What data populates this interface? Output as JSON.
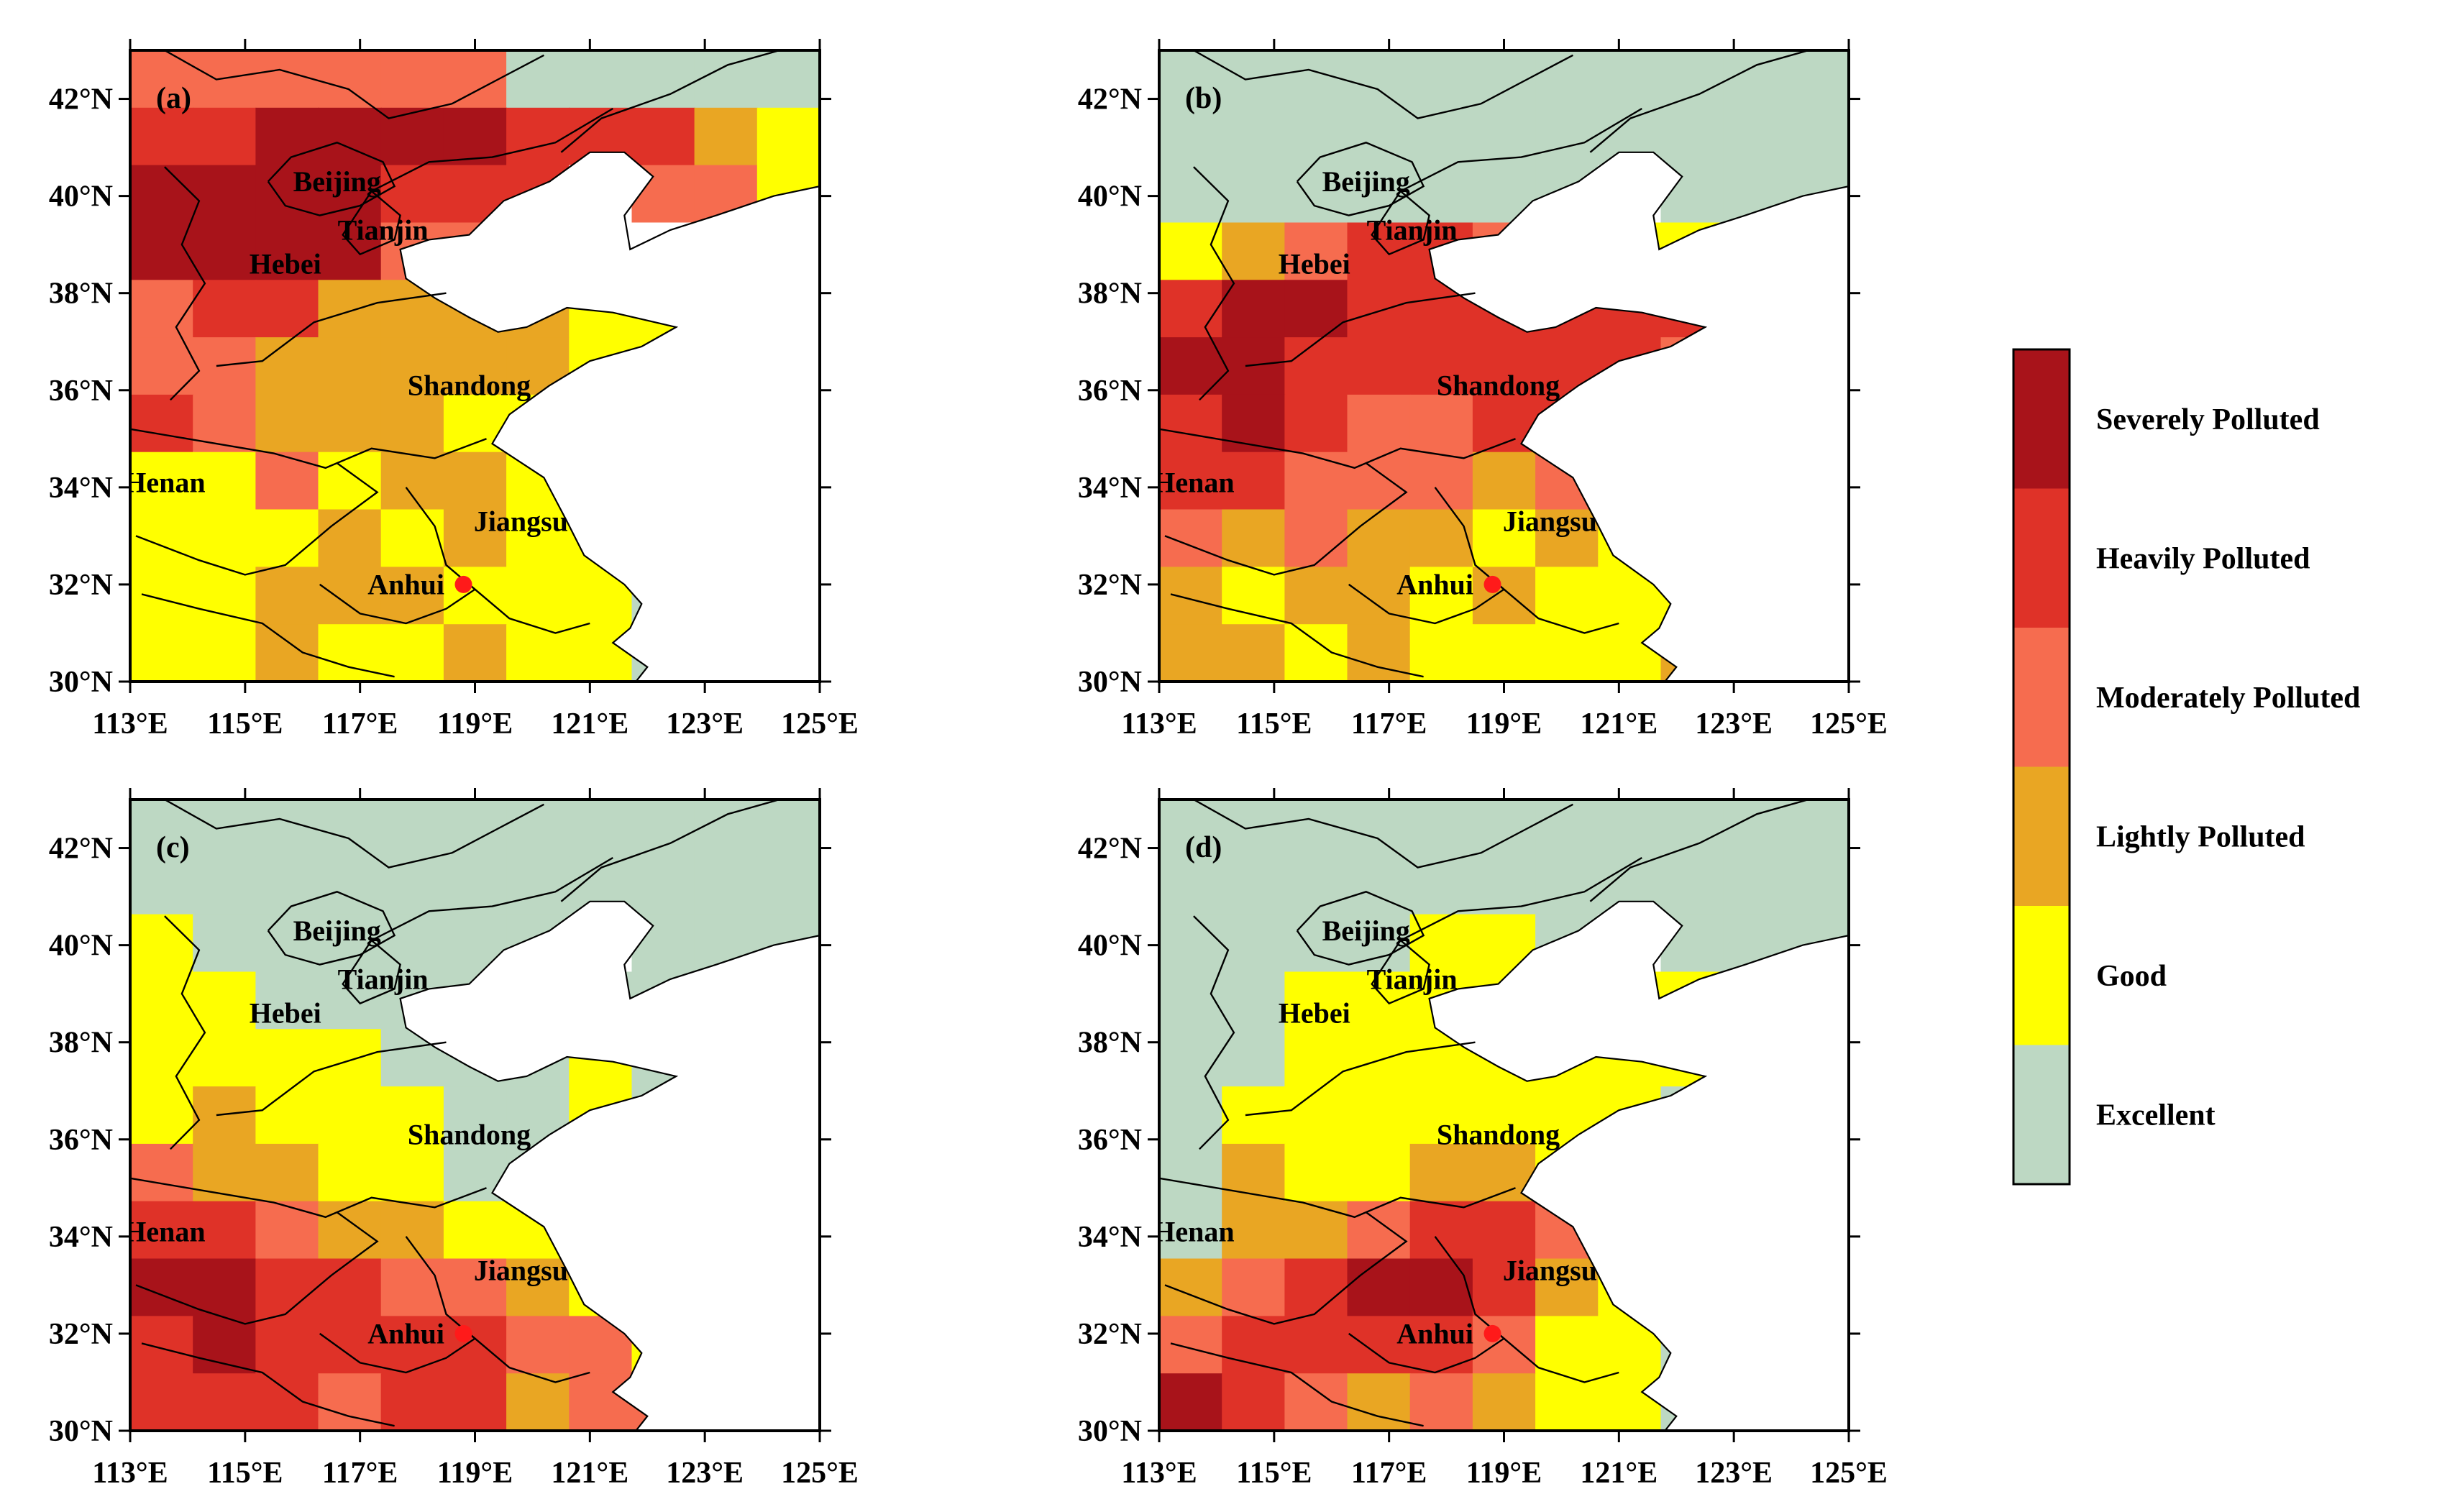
{
  "figure": {
    "panels": [
      {
        "tag": "(a)",
        "pattern": [
          "MMMMMMEEEEE",
          "HHSSSSHHHLY",
          "SSSSHHH.MMY",
          "SSSSMML..YY",
          "MHHLLLLYYYE",
          "MMLLLLLYYEE",
          "HMLLLYYY...",
          "YYMYLLYYE..",
          "YYYLYLYYE..",
          "YYLLLYYYE..",
          "YYLYYLYYE.."
        ]
      },
      {
        "tag": "(b)",
        "pattern": [
          "EEEEEEEEEEE",
          "EEEEEEEEEEE",
          "EEEEEEE.EEE",
          "YLMHHMLYYYE",
          "HSSHHHHHHMY",
          "SSHHHHHHMY.",
          "HSHMMHHMY..",
          "HHMMMLMML..",
          "MLMLLYLYL..",
          "LYLLYLYYY..",
          "LLYLYYYYL.."
        ]
      },
      {
        "tag": "(c)",
        "pattern": [
          "EEEEEEEEEEE",
          "EEEEEEEEEEE",
          "YEEEEEE.EEE",
          "YYEEEEEEEEE",
          "YYYYEEEYEEE",
          "YLYYYEEYE..",
          "MLLYYEEEE..",
          "HHMLLYYEE..",
          "SSHHMMLYY..",
          "HSHHHHMMY..",
          "HHHMHHLMM.."
        ]
      },
      {
        "tag": "(d)",
        "pattern": [
          "EEEEEEEEEEE",
          "EEEEEEEEEEE",
          "EEEEYYE.EEE",
          "EEYYYYYYYEE",
          "EEYYYYYYYEE",
          "EYYYYYYYE..",
          "ELYYLLYEE..",
          "ELLMHHMYE..",
          "LMHSSHLYE..",
          "MHHHHMYYE..",
          "SHMLMLYYE.."
        ]
      }
    ],
    "x_ticks": [
      "113°E",
      "115°E",
      "117°E",
      "119°E",
      "121°E",
      "123°E",
      "125°E"
    ],
    "y_ticks": [
      "42°N",
      "40°N",
      "38°N",
      "36°N",
      "34°N",
      "32°N",
      "30°N"
    ],
    "place_labels": [
      {
        "name": "Beijing",
        "lon": 116.6,
        "lat": 40.1
      },
      {
        "name": "Tianjin",
        "lon": 117.4,
        "lat": 39.1
      },
      {
        "name": "Hebei",
        "lon": 115.7,
        "lat": 38.4
      },
      {
        "name": "Shandong",
        "lon": 118.9,
        "lat": 35.9
      },
      {
        "name": "Henan",
        "lon": 113.6,
        "lat": 33.9
      },
      {
        "name": "Jiangsu",
        "lon": 119.8,
        "lat": 33.1
      },
      {
        "name": "Anhui",
        "lon": 117.8,
        "lat": 31.8
      }
    ],
    "site_marker": {
      "lon": 118.8,
      "lat": 32.0,
      "color": "#ff1a1a"
    },
    "legend": [
      {
        "label": "Severely Polluted",
        "color": "#a8131a"
      },
      {
        "label": "Heavily Polluted",
        "color": "#df3228"
      },
      {
        "label": "Moderately Polluted",
        "color": "#f66c4f"
      },
      {
        "label": "Lightly Polluted",
        "color": "#e9a623"
      },
      {
        "label": "Good",
        "color": "#ffff00"
      },
      {
        "label": "Excellent",
        "color": "#bdd8c3"
      }
    ],
    "sea_color": "#ffffff"
  }
}
